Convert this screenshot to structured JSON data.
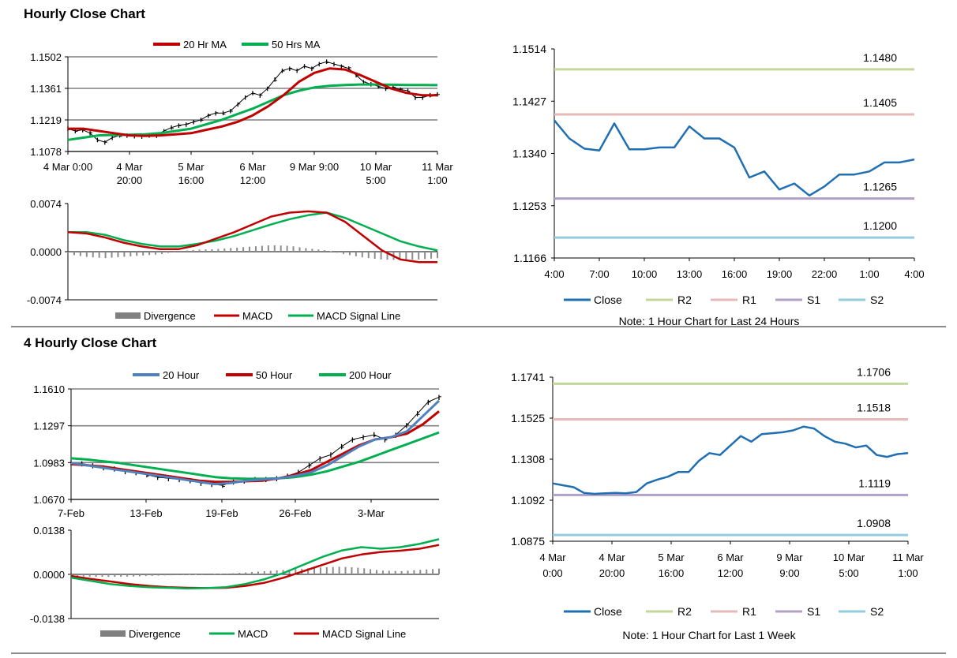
{
  "sections": [
    {
      "title": "Hourly Close Chart"
    },
    {
      "title": "4 Hourly Close Chart"
    }
  ],
  "colors": {
    "ma_red": "#c00000",
    "ma_green": "#00b050",
    "ma_blue": "#4f81bd",
    "close": "#1f6fb2",
    "r2": "#c4d79b",
    "r1": "#e6b9b8",
    "s1": "#b1a0c7",
    "s2": "#93cddd",
    "grid": "#808080",
    "price": "#000000"
  },
  "chart_data": [
    {
      "id": "hourly-price",
      "type": "line",
      "legend": [
        "20 Hr MA",
        "50 Hrs MA"
      ],
      "yticks": [
        "1.1502",
        "1.1361",
        "1.1219",
        "1.1078"
      ],
      "ylim": [
        1.1078,
        1.1502
      ],
      "xticks": [
        [
          "4 Mar 0:00"
        ],
        [
          "4 Mar",
          "20:00"
        ],
        [
          "5 Mar",
          "16:00"
        ],
        [
          "6 Mar",
          "12:00"
        ],
        [
          "9 Mar 9:00"
        ],
        [
          "10 Mar",
          "5:00"
        ],
        [
          "11 Mar",
          "1:00"
        ]
      ],
      "price": [
        1.118,
        1.117,
        1.1175,
        1.116,
        1.113,
        1.112,
        1.114,
        1.115,
        1.115,
        1.1148,
        1.1145,
        1.115,
        1.115,
        1.117,
        1.1185,
        1.1195,
        1.12,
        1.121,
        1.122,
        1.124,
        1.125,
        1.125,
        1.126,
        1.129,
        1.132,
        1.134,
        1.133,
        1.136,
        1.14,
        1.144,
        1.145,
        1.144,
        1.146,
        1.145,
        1.147,
        1.148,
        1.147,
        1.146,
        1.145,
        1.142,
        1.139,
        1.138,
        1.137,
        1.136,
        1.1365,
        1.1355,
        1.135,
        1.132,
        1.132,
        1.133,
        1.1335
      ],
      "series": [
        {
          "name": "20 Hr MA",
          "values": [
            1.118,
            1.118,
            1.117,
            1.116,
            1.115,
            1.1148,
            1.115,
            1.1155,
            1.116,
            1.1175,
            1.119,
            1.121,
            1.124,
            1.128,
            1.133,
            1.139,
            1.143,
            1.145,
            1.1445,
            1.142,
            1.139,
            1.136,
            1.134,
            1.133,
            1.133
          ]
        },
        {
          "name": "50 Hrs MA",
          "values": [
            1.113,
            1.114,
            1.115,
            1.1152,
            1.1153,
            1.1155,
            1.116,
            1.117,
            1.118,
            1.12,
            1.122,
            1.1245,
            1.127,
            1.13,
            1.133,
            1.135,
            1.1365,
            1.1372,
            1.1376,
            1.1378,
            1.1378,
            1.1377,
            1.1376,
            1.1376,
            1.1375
          ]
        }
      ]
    },
    {
      "id": "hourly-macd",
      "type": "line",
      "legend": [
        "Divergence",
        "MACD",
        "MACD Signal Line"
      ],
      "yticks": [
        "0.0074",
        "0.0000",
        "-0.0074"
      ],
      "ylim": [
        -0.0074,
        0.0074
      ],
      "series": [
        {
          "name": "MACD",
          "values": [
            0.003,
            0.0028,
            0.0022,
            0.0014,
            0.0008,
            0.0004,
            0.0004,
            0.001,
            0.002,
            0.003,
            0.0042,
            0.0054,
            0.006,
            0.0062,
            0.006,
            0.0046,
            0.0024,
            0.0002,
            -0.0012,
            -0.0016,
            -0.0016
          ]
        },
        {
          "name": "MACD Signal Line",
          "values": [
            0.003,
            0.003,
            0.0026,
            0.0018,
            0.0012,
            0.0008,
            0.0008,
            0.0012,
            0.0017,
            0.0024,
            0.0033,
            0.0042,
            0.005,
            0.0056,
            0.006,
            0.0052,
            0.004,
            0.0028,
            0.0016,
            0.0008,
            0.0002
          ]
        },
        {
          "name": "Divergence",
          "values": [
            -0.0004,
            -0.0008,
            -0.001,
            -0.0008,
            -0.0006,
            -0.0004,
            0.0001,
            0.0003,
            0.0004,
            0.0006,
            0.0008,
            0.001,
            0.0009,
            0.0005,
            0.0002,
            -0.0004,
            -0.0009,
            -0.0012,
            -0.0013,
            -0.0012,
            -0.001
          ]
        }
      ]
    },
    {
      "id": "hourly-close",
      "type": "line",
      "yticks": [
        "1.1514",
        "1.1427",
        "1.1340",
        "1.1253",
        "1.1166"
      ],
      "ylim": [
        1.1166,
        1.1514
      ],
      "xticks": [
        "4:00",
        "7:00",
        "10:00",
        "13:00",
        "16:00",
        "19:00",
        "22:00",
        "1:00",
        "4:00"
      ],
      "levels": [
        {
          "name": "R2",
          "value": 1.148,
          "label": "1.1480"
        },
        {
          "name": "R1",
          "value": 1.1405,
          "label": "1.1405"
        },
        {
          "name": "S1",
          "value": 1.1265,
          "label": "1.1265"
        },
        {
          "name": "S2",
          "value": 1.12,
          "label": "1.1200"
        }
      ],
      "close": [
        1.1395,
        1.1365,
        1.1348,
        1.1345,
        1.139,
        1.1347,
        1.1347,
        1.135,
        1.135,
        1.1385,
        1.1365,
        1.1365,
        1.135,
        1.13,
        1.131,
        1.128,
        1.129,
        1.127,
        1.1285,
        1.1305,
        1.1305,
        1.131,
        1.1325,
        1.1325,
        1.133
      ],
      "legend": [
        "Close",
        "R2",
        "R1",
        "S1",
        "S2"
      ],
      "note": "Note: 1 Hour Chart for Last 24 Hours"
    },
    {
      "id": "four-hourly-price",
      "type": "line",
      "legend": [
        "20 Hour",
        "50 Hour",
        "200 Hour"
      ],
      "yticks": [
        "1.1610",
        "1.1297",
        "1.0983",
        "1.0670"
      ],
      "ylim": [
        1.067,
        1.161
      ],
      "xticks": [
        "7-Feb",
        "13-Feb",
        "19-Feb",
        "26-Feb",
        "3-Mar"
      ],
      "price": [
        1.098,
        1.0975,
        1.096,
        1.094,
        1.093,
        1.091,
        1.09,
        1.088,
        1.086,
        1.085,
        1.084,
        1.083,
        1.081,
        1.08,
        1.079,
        1.082,
        1.083,
        1.084,
        1.084,
        1.085,
        1.087,
        1.09,
        1.096,
        1.102,
        1.105,
        1.112,
        1.118,
        1.12,
        1.122,
        1.118,
        1.122,
        1.13,
        1.14,
        1.15,
        1.154
      ],
      "series": [
        {
          "name": "20 Hour",
          "values": [
            1.098,
            1.096,
            1.094,
            1.092,
            1.09,
            1.088,
            1.086,
            1.084,
            1.082,
            1.08,
            1.081,
            1.083,
            1.084,
            1.085,
            1.087,
            1.09,
            1.096,
            1.104,
            1.112,
            1.118,
            1.12,
            1.125,
            1.138,
            1.151
          ]
        },
        {
          "name": "50 Hour",
          "values": [
            1.097,
            1.096,
            1.095,
            1.093,
            1.091,
            1.089,
            1.087,
            1.085,
            1.083,
            1.082,
            1.082,
            1.0825,
            1.083,
            1.085,
            1.088,
            1.092,
            1.099,
            1.106,
            1.113,
            1.118,
            1.12,
            1.123,
            1.131,
            1.142
          ]
        },
        {
          "name": "200 Hour",
          "values": [
            1.102,
            1.101,
            1.0995,
            1.098,
            1.096,
            1.094,
            1.092,
            1.09,
            1.088,
            1.086,
            1.085,
            1.0845,
            1.0845,
            1.085,
            1.086,
            1.088,
            1.091,
            1.095,
            1.099,
            1.104,
            1.109,
            1.114,
            1.119,
            1.124
          ]
        }
      ]
    },
    {
      "id": "four-hourly-macd",
      "type": "line",
      "legend": [
        "Divergence",
        "MACD",
        "MACD Signal Line"
      ],
      "yticks": [
        "0.0138",
        "0.0000",
        "-0.0138"
      ],
      "ylim": [
        -0.0138,
        0.0138
      ],
      "series": [
        {
          "name": "MACD",
          "values": [
            -0.001,
            -0.002,
            -0.003,
            -0.0036,
            -0.004,
            -0.0042,
            -0.0044,
            -0.0043,
            -0.004,
            -0.003,
            -0.0015,
            0.0005,
            0.003,
            0.0055,
            0.0075,
            0.0085,
            0.008,
            0.0085,
            0.0095,
            0.011
          ]
        },
        {
          "name": "MACD Signal Line",
          "values": [
            -0.0005,
            -0.0014,
            -0.0022,
            -0.003,
            -0.0036,
            -0.004,
            -0.0042,
            -0.0043,
            -0.0042,
            -0.0036,
            -0.0026,
            -0.001,
            0.001,
            0.003,
            0.005,
            0.0062,
            0.007,
            0.0074,
            0.008,
            0.0092
          ]
        },
        {
          "name": "Divergence",
          "values": [
            -0.0006,
            -0.0007,
            -0.0008,
            -0.0007,
            -0.0005,
            -0.0003,
            -0.0002,
            0.0,
            0.0002,
            0.0006,
            0.001,
            0.0014,
            0.0018,
            0.0022,
            0.0024,
            0.002,
            0.0012,
            0.001,
            0.0014,
            0.0018
          ]
        }
      ]
    },
    {
      "id": "four-hourly-close",
      "type": "line",
      "yticks": [
        "1.1741",
        "1.1525",
        "1.1308",
        "1.1092",
        "1.0875"
      ],
      "ylim": [
        1.0875,
        1.1741
      ],
      "xticks": [
        [
          "4 Mar",
          "0:00"
        ],
        [
          "4 Mar",
          "20:00"
        ],
        [
          "5 Mar",
          "16:00"
        ],
        [
          "6 Mar",
          "12:00"
        ],
        [
          "9 Mar",
          "9:00"
        ],
        [
          "10 Mar",
          "5:00"
        ],
        [
          "11 Mar",
          "1:00"
        ]
      ],
      "levels": [
        {
          "name": "R2",
          "value": 1.1706,
          "label": "1.1706"
        },
        {
          "name": "R1",
          "value": 1.1518,
          "label": "1.1518"
        },
        {
          "name": "S1",
          "value": 1.1119,
          "label": "1.1119"
        },
        {
          "name": "S2",
          "value": 1.0908,
          "label": "1.0908"
        }
      ],
      "close": [
        1.118,
        1.117,
        1.116,
        1.113,
        1.1125,
        1.1128,
        1.113,
        1.1128,
        1.1135,
        1.118,
        1.12,
        1.1215,
        1.124,
        1.124,
        1.13,
        1.134,
        1.133,
        1.138,
        1.143,
        1.14,
        1.144,
        1.1445,
        1.145,
        1.146,
        1.148,
        1.147,
        1.143,
        1.14,
        1.139,
        1.137,
        1.138,
        1.133,
        1.132,
        1.1335,
        1.134
      ],
      "legend": [
        "Close",
        "R2",
        "R1",
        "S1",
        "S2"
      ],
      "note": "Note: 1 Hour Chart for Last 1 Week"
    }
  ]
}
